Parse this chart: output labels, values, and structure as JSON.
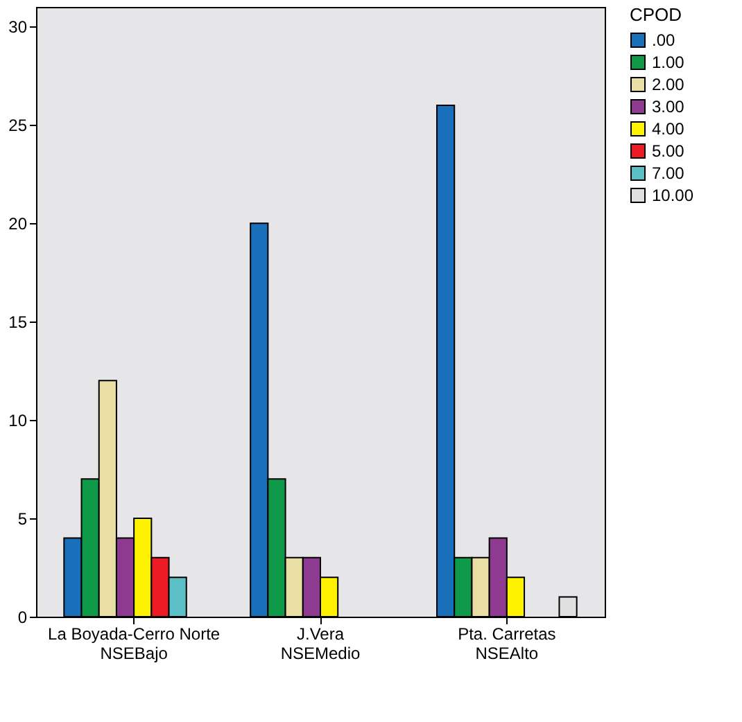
{
  "chart_data": {
    "type": "bar",
    "legend_title": "CPOD",
    "legend": "right",
    "categories": [
      "La Boyada-Cerro Norte\nNSEBajo",
      "J.Vera\nNSEMedio",
      "Pta. Carretas\nNSEAlto"
    ],
    "series": [
      {
        "name": ".00",
        "color": "#1a6fba",
        "values": [
          4,
          20,
          26
        ]
      },
      {
        "name": "1.00",
        "color": "#0f9a4a",
        "values": [
          7,
          7,
          3
        ]
      },
      {
        "name": "2.00",
        "color": "#e9dea3",
        "values": [
          12,
          3,
          3
        ]
      },
      {
        "name": "3.00",
        "color": "#8e3a91",
        "values": [
          4,
          3,
          4
        ]
      },
      {
        "name": "4.00",
        "color": "#fff200",
        "values": [
          5,
          2,
          2
        ]
      },
      {
        "name": "5.00",
        "color": "#ed1c24",
        "values": [
          3,
          null,
          null
        ]
      },
      {
        "name": "7.00",
        "color": "#5bbfc6",
        "values": [
          2,
          null,
          null
        ]
      },
      {
        "name": "10.00",
        "color": "#e0e0e0",
        "values": [
          null,
          null,
          1
        ]
      }
    ],
    "ylim": [
      0,
      31
    ],
    "yticks": [
      0,
      5,
      10,
      15,
      20,
      25,
      30
    ],
    "grid": false
  }
}
